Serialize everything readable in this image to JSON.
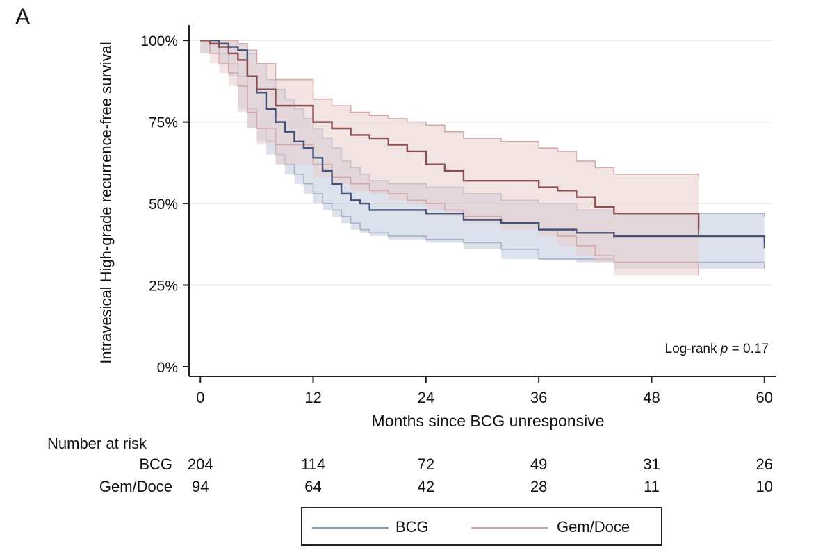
{
  "panel_label": "A",
  "chart_data": {
    "type": "line",
    "subtype": "kaplan-meier",
    "ylabel": "Intravesical High-grade recurrence-free survival",
    "xlabel": "Months since BCG unresponsive",
    "x_ticks": [
      0,
      12,
      24,
      36,
      48,
      60
    ],
    "y_ticks": [
      0,
      25,
      50,
      75,
      100
    ],
    "y_tick_labels": [
      "0%",
      "25%",
      "50%",
      "75%",
      "100%"
    ],
    "xlim": [
      -1.2,
      61.2
    ],
    "ylim": [
      -3,
      106
    ],
    "grid": true,
    "annotation": {
      "prefix": "Log-rank ",
      "italic": "p",
      "suffix": " = 0.17"
    },
    "series": [
      {
        "name": "BCG",
        "color": "#44527a",
        "band_color": "#bfc8da",
        "band_edge": "#a8b2c8",
        "x": [
          0,
          2,
          3,
          4,
          5,
          6,
          7,
          8,
          9,
          10,
          11,
          12,
          13,
          14,
          15,
          16,
          17,
          18,
          20,
          24,
          28,
          32,
          36,
          40,
          44,
          60
        ],
        "y": [
          100,
          99,
          98,
          97,
          89,
          84,
          79,
          75,
          72,
          69,
          67,
          64,
          60,
          56,
          53,
          51,
          50,
          48,
          48,
          47,
          45,
          44,
          42,
          41,
          40,
          38
        ],
        "lower": [
          100,
          96,
          93,
          89,
          79,
          73,
          69,
          65,
          62,
          59,
          56,
          53,
          50,
          48,
          46,
          44,
          42,
          41,
          40,
          39,
          38,
          36,
          33,
          33,
          32,
          30
        ],
        "upper": [
          100,
          100,
          100,
          99,
          96,
          93,
          88,
          85,
          82,
          79,
          76,
          73,
          70,
          67,
          63,
          61,
          59,
          57,
          56,
          55,
          53,
          51,
          50,
          48,
          47,
          46
        ]
      },
      {
        "name": "Gem/Doce",
        "color": "#8a5050",
        "band_color": "#e9cece",
        "band_edge": "#d4a8a8",
        "x": [
          0,
          1,
          2,
          3,
          4,
          5,
          6,
          8,
          12,
          14,
          16,
          18,
          20,
          22,
          24,
          26,
          28,
          32,
          36,
          38,
          40,
          42,
          44,
          53
        ],
        "y": [
          100,
          99,
          98,
          96,
          94,
          89,
          85,
          80,
          75,
          73,
          71,
          70,
          68,
          66,
          62,
          60,
          57,
          57,
          55,
          54,
          52,
          49,
          47,
          42
        ],
        "lower": [
          100,
          96,
          93,
          90,
          86,
          78,
          73,
          68,
          62,
          58,
          56,
          54,
          53,
          51,
          50,
          48,
          46,
          44,
          42,
          40,
          37,
          34,
          32,
          28
        ],
        "upper": [
          100,
          100,
          100,
          100,
          99,
          97,
          93,
          88,
          82,
          80,
          78,
          77,
          76,
          75,
          74,
          72,
          70,
          69,
          67,
          66,
          63,
          61,
          59,
          58
        ]
      }
    ]
  },
  "risk_table": {
    "title": "Number at risk",
    "rows": [
      {
        "label": "BCG",
        "values": [
          "204",
          "114",
          "72",
          "49",
          "31",
          "26"
        ]
      },
      {
        "label": "Gem/Doce",
        "values": [
          "94",
          "64",
          "42",
          "28",
          "11",
          "10"
        ]
      }
    ]
  },
  "legend": {
    "items": [
      {
        "label": "BCG",
        "color": "#8a96b6"
      },
      {
        "label": "Gem/Doce",
        "color": "#c9a0a0"
      }
    ]
  }
}
